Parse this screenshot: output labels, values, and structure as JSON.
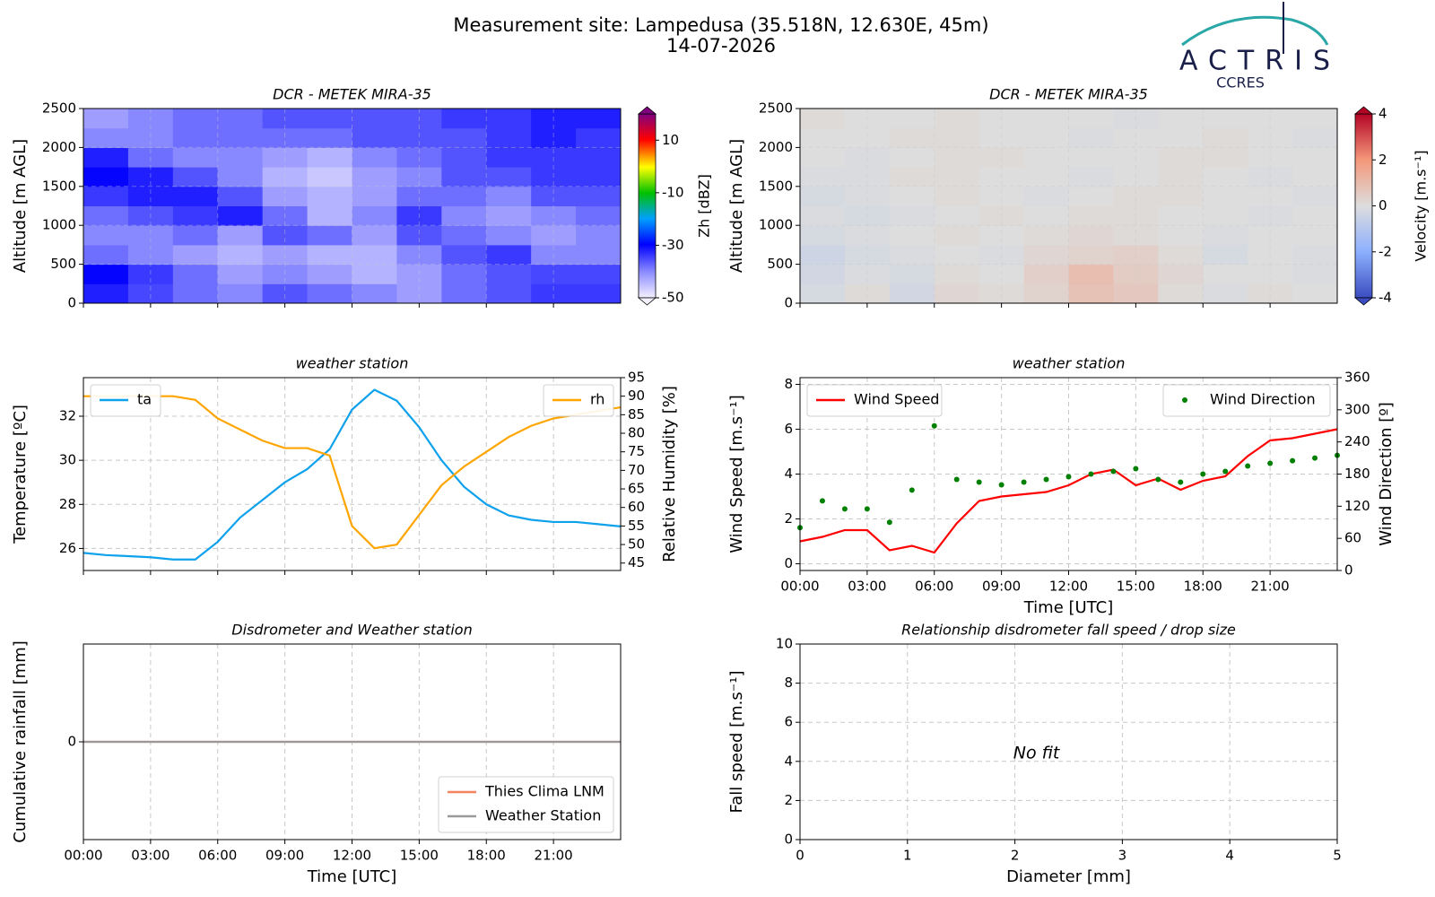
{
  "header": {
    "title": "Measurement site: Lampedusa (35.518N, 12.630E, 45m)",
    "date": "14-07-2026",
    "logo": "ACTRIS",
    "logo_sub": "CCRES"
  },
  "chart_data": [
    {
      "type": "heatmap",
      "title": "DCR - METEK MIRA-35",
      "ylabel": "Altitude [m AGL]",
      "colormap": "reflectivity",
      "xlim": [
        0,
        24
      ],
      "xticks": [
        0,
        3,
        6,
        9,
        12,
        15,
        18,
        21
      ],
      "xticklabels": false,
      "ylim": [
        0,
        2500
      ],
      "yticks": [
        0,
        500,
        1000,
        1500,
        2000,
        2500
      ],
      "grid": true,
      "x_bins": [
        0,
        2,
        4,
        6,
        8,
        10,
        12,
        14,
        16,
        18,
        20,
        22,
        24
      ],
      "y_bins": [
        0,
        250,
        500,
        750,
        1000,
        1250,
        1500,
        1750,
        2000,
        2250,
        2500
      ],
      "z": [
        [
          -32,
          -35,
          -38,
          -40,
          -36,
          -38,
          -40,
          -42,
          -38,
          -36,
          -34,
          -34
        ],
        [
          -30,
          -34,
          -38,
          -42,
          -40,
          -42,
          -44,
          -42,
          -38,
          -36,
          -35,
          -35
        ],
        [
          -38,
          -40,
          -42,
          -44,
          -42,
          -44,
          -44,
          -40,
          -36,
          -34,
          -40,
          -40
        ],
        [
          -40,
          -40,
          -38,
          -42,
          -36,
          -38,
          -42,
          -36,
          -38,
          -40,
          -42,
          -40
        ],
        [
          -38,
          -36,
          -34,
          -32,
          -38,
          -44,
          -40,
          -34,
          -40,
          -42,
          -40,
          -38
        ],
        [
          -34,
          -32,
          -32,
          -36,
          -42,
          -44,
          -42,
          -38,
          -38,
          -40,
          -36,
          -36
        ],
        [
          -30,
          -32,
          -36,
          -40,
          -44,
          -46,
          -42,
          -40,
          -36,
          -36,
          -34,
          -34
        ],
        [
          -32,
          -38,
          -40,
          -40,
          -42,
          -44,
          -40,
          -38,
          -36,
          -34,
          -34,
          -34
        ],
        [
          -40,
          -40,
          -38,
          -38,
          -38,
          -38,
          -36,
          -36,
          -36,
          -34,
          -32,
          -34
        ],
        [
          -42,
          -40,
          -38,
          -38,
          -36,
          -36,
          -36,
          -36,
          -34,
          -34,
          -32,
          -32
        ]
      ],
      "zlim": [
        -50,
        20
      ],
      "zticks": [
        -50,
        -30,
        -10,
        10
      ],
      "zlabel": "Zh [dBZ]"
    },
    {
      "type": "heatmap",
      "title": "DCR - METEK MIRA-35",
      "ylabel": "Altitude [m AGL]",
      "colormap": "velocity",
      "xlim": [
        0,
        24
      ],
      "xticks": [
        0,
        3,
        6,
        9,
        12,
        15,
        18,
        21
      ],
      "xticklabels": false,
      "ylim": [
        0,
        2500
      ],
      "yticks": [
        0,
        500,
        1000,
        1500,
        2000,
        2500
      ],
      "grid": true,
      "x_bins": [
        0,
        2,
        4,
        6,
        8,
        10,
        12,
        14,
        16,
        18,
        20,
        22,
        24
      ],
      "y_bins": [
        0,
        250,
        500,
        750,
        1000,
        1250,
        1500,
        1750,
        2000,
        2250,
        2500
      ],
      "z": [
        [
          -0.2,
          0.1,
          -0.3,
          0.2,
          0.1,
          0.3,
          0.8,
          0.6,
          0.1,
          -0.1,
          0.1,
          0.0
        ],
        [
          -0.3,
          -0.1,
          -0.2,
          0.1,
          0.0,
          0.4,
          0.9,
          0.5,
          0.2,
          0.0,
          0.0,
          -0.1
        ],
        [
          -0.4,
          -0.2,
          -0.1,
          0.0,
          -0.1,
          0.2,
          0.3,
          0.4,
          0.1,
          -0.2,
          0.0,
          -0.1
        ],
        [
          -0.2,
          -0.1,
          0.0,
          0.1,
          0.0,
          0.1,
          0.2,
          0.1,
          0.0,
          -0.1,
          0.0,
          0.0
        ],
        [
          -0.1,
          -0.2,
          -0.1,
          0.0,
          0.1,
          0.0,
          0.1,
          0.1,
          0.0,
          0.0,
          -0.1,
          0.0
        ],
        [
          -0.2,
          -0.1,
          0.0,
          0.1,
          0.0,
          -0.1,
          0.0,
          0.1,
          0.1,
          0.0,
          0.0,
          -0.1
        ],
        [
          -0.1,
          -0.1,
          0.1,
          0.1,
          0.0,
          0.0,
          -0.1,
          0.0,
          0.1,
          0.0,
          -0.1,
          0.0
        ],
        [
          0.0,
          -0.1,
          0.0,
          0.1,
          0.1,
          0.0,
          0.0,
          0.0,
          0.1,
          0.1,
          0.0,
          0.0
        ],
        [
          0.0,
          0.0,
          0.1,
          0.1,
          0.0,
          0.0,
          -0.1,
          0.0,
          0.0,
          0.1,
          0.0,
          -0.1
        ],
        [
          0.1,
          0.0,
          0.0,
          0.1,
          0.0,
          0.0,
          0.0,
          -0.1,
          0.0,
          0.0,
          0.0,
          0.0
        ]
      ],
      "zlim": [
        -4,
        4
      ],
      "zticks": [
        -4,
        -2,
        0,
        2,
        4
      ],
      "zlabel": "Velocity [m.s⁻¹]"
    },
    {
      "type": "line",
      "title": "weather station",
      "ylabel": "Temperature [ºC]",
      "y2label": "Relative Humidity [%]",
      "xlim": [
        0,
        24
      ],
      "xticks": [
        0,
        3,
        6,
        9,
        12,
        15,
        18,
        21
      ],
      "xticklabels": false,
      "ylim": [
        25,
        33.75
      ],
      "yticks": [
        26,
        28,
        30,
        32
      ],
      "y2lim": [
        43,
        95
      ],
      "y2ticks": [
        45,
        50,
        55,
        60,
        65,
        70,
        75,
        80,
        85,
        90,
        95
      ],
      "grid": true,
      "x": [
        0,
        1,
        2,
        3,
        4,
        5,
        6,
        7,
        8,
        9,
        10,
        11,
        12,
        13,
        14,
        15,
        16,
        17,
        18,
        19,
        20,
        21,
        22,
        23,
        24
      ],
      "series": [
        {
          "name": "ta",
          "color": "#0ea1ec",
          "legend": "upper left",
          "values": [
            25.8,
            25.7,
            25.65,
            25.6,
            25.5,
            25.5,
            26.3,
            27.4,
            28.2,
            29.0,
            29.6,
            30.5,
            32.3,
            33.2,
            32.7,
            31.5,
            30.0,
            28.8,
            28.0,
            27.5,
            27.3,
            27.2,
            27.2,
            27.1,
            27.0
          ]
        },
        {
          "name": "rh",
          "color": "#ffa500",
          "axis": "y2",
          "legend": "upper right",
          "values": [
            90,
            90,
            90,
            90,
            90,
            89,
            84,
            81,
            78,
            76,
            76,
            74,
            55,
            49,
            50,
            58,
            66,
            71,
            75,
            79,
            82,
            84,
            85,
            86,
            87
          ]
        }
      ]
    },
    {
      "type": "line",
      "title": "weather station",
      "xlabel": "Time [UTC]",
      "ylabel": "Wind Speed [m.s⁻¹]",
      "y2label": "Wind Direction [º]",
      "xlim": [
        0,
        24
      ],
      "xticks": [
        {
          "value": 0,
          "label": "00:00"
        },
        {
          "value": 3,
          "label": "03:00"
        },
        {
          "value": 6,
          "label": "06:00"
        },
        {
          "value": 9,
          "label": "09:00"
        },
        {
          "value": 12,
          "label": "12:00"
        },
        {
          "value": 15,
          "label": "15:00"
        },
        {
          "value": 18,
          "label": "18:00"
        },
        {
          "value": 21,
          "label": "21:00"
        }
      ],
      "ylim": [
        -0.3,
        8.3
      ],
      "yticks": [
        0,
        2,
        4,
        6,
        8
      ],
      "y2lim": [
        0,
        360
      ],
      "y2ticks": [
        0,
        60,
        120,
        180,
        240,
        300,
        360
      ],
      "grid": true,
      "x": [
        0,
        1,
        2,
        3,
        4,
        5,
        6,
        7,
        8,
        9,
        10,
        11,
        12,
        13,
        14,
        15,
        16,
        17,
        18,
        19,
        20,
        21,
        22,
        23,
        24
      ],
      "series": [
        {
          "name": "Wind Speed",
          "color": "#ff0000",
          "legend": "upper left",
          "values": [
            1.0,
            1.2,
            1.5,
            1.5,
            0.6,
            0.8,
            0.5,
            1.8,
            2.8,
            3.0,
            3.1,
            3.2,
            3.5,
            4.0,
            4.2,
            3.5,
            3.8,
            3.3,
            3.7,
            3.9,
            4.8,
            5.5,
            5.6,
            5.8,
            6.0
          ]
        },
        {
          "name": "Wind Direction",
          "color": "#008000",
          "axis": "y2",
          "style": "markers",
          "legend": "upper right",
          "values": [
            80,
            130,
            115,
            115,
            90,
            150,
            270,
            170,
            165,
            160,
            165,
            170,
            175,
            180,
            185,
            190,
            170,
            165,
            180,
            185,
            195,
            200,
            205,
            210,
            215
          ]
        }
      ]
    },
    {
      "type": "line",
      "title": "Disdrometer and Weather station",
      "xlabel": "Time [UTC]",
      "ylabel": "Cumulative rainfall [mm]",
      "xlim": [
        0,
        24
      ],
      "xticks": [
        {
          "value": 0,
          "label": "00:00"
        },
        {
          "value": 3,
          "label": "03:00"
        },
        {
          "value": 6,
          "label": "06:00"
        },
        {
          "value": 9,
          "label": "09:00"
        },
        {
          "value": 12,
          "label": "12:00"
        },
        {
          "value": 15,
          "label": "15:00"
        },
        {
          "value": 18,
          "label": "18:00"
        },
        {
          "value": 21,
          "label": "21:00"
        }
      ],
      "ylim": [
        -1,
        1
      ],
      "yticks": [
        0
      ],
      "grid": true,
      "legend": "lower right",
      "x": [
        0,
        24
      ],
      "series": [
        {
          "name": "Thies Clima LNM",
          "color": "#f4845f",
          "values": [
            0,
            0
          ]
        },
        {
          "name": "Weather Station",
          "color": "#999999",
          "values": [
            0,
            0
          ]
        }
      ]
    },
    {
      "type": "scatter",
      "title": "Relationship disdrometer fall speed / drop size",
      "xlabel": "Diameter [mm]",
      "ylabel": "Fall speed [m.s⁻¹]",
      "xlim": [
        0,
        5
      ],
      "xticks": [
        0,
        1,
        2,
        3,
        4,
        5
      ],
      "ylim": [
        0,
        10
      ],
      "yticks": [
        0,
        2,
        4,
        6,
        8,
        10
      ],
      "grid": true,
      "annotation": "No fit"
    }
  ]
}
